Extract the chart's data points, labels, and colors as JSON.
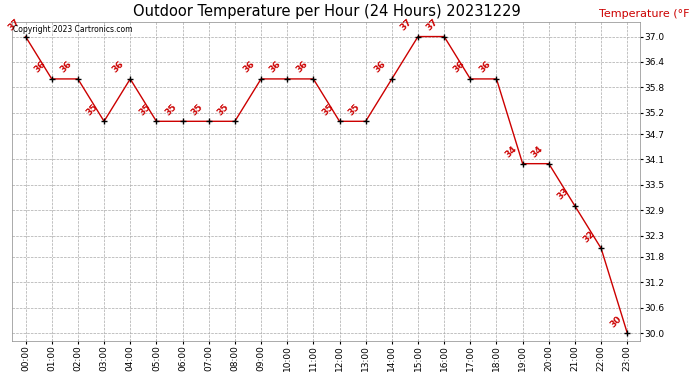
{
  "title": "Outdoor Temperature per Hour (24 Hours) 20231229",
  "ylabel": "Temperature (°F)",
  "copyright_text": "Copyright 2023 Cartronics.com",
  "hours": [
    "00:00",
    "01:00",
    "02:00",
    "03:00",
    "04:00",
    "05:00",
    "06:00",
    "07:00",
    "08:00",
    "09:00",
    "10:00",
    "11:00",
    "12:00",
    "13:00",
    "14:00",
    "15:00",
    "16:00",
    "17:00",
    "18:00",
    "19:00",
    "20:00",
    "21:00",
    "22:00",
    "23:00"
  ],
  "temps": [
    37,
    36,
    36,
    35,
    36,
    35,
    35,
    35,
    35,
    36,
    36,
    36,
    35,
    35,
    36,
    37,
    37,
    36,
    36,
    34,
    34,
    33,
    32,
    30
  ],
  "line_color": "#cc0000",
  "marker_color": "#000000",
  "label_color": "#cc0000",
  "ylabel_color": "#cc0000",
  "background_color": "#ffffff",
  "grid_color": "#aaaaaa",
  "ylim_min": 29.82,
  "ylim_max": 37.35,
  "yticks": [
    30.0,
    30.6,
    31.2,
    31.8,
    32.3,
    32.9,
    33.5,
    34.1,
    34.7,
    35.2,
    35.8,
    36.4,
    37.0
  ],
  "title_fontsize": 10.5,
  "label_fontsize": 6.5,
  "ylabel_fontsize": 8,
  "tick_fontsize": 6.5
}
